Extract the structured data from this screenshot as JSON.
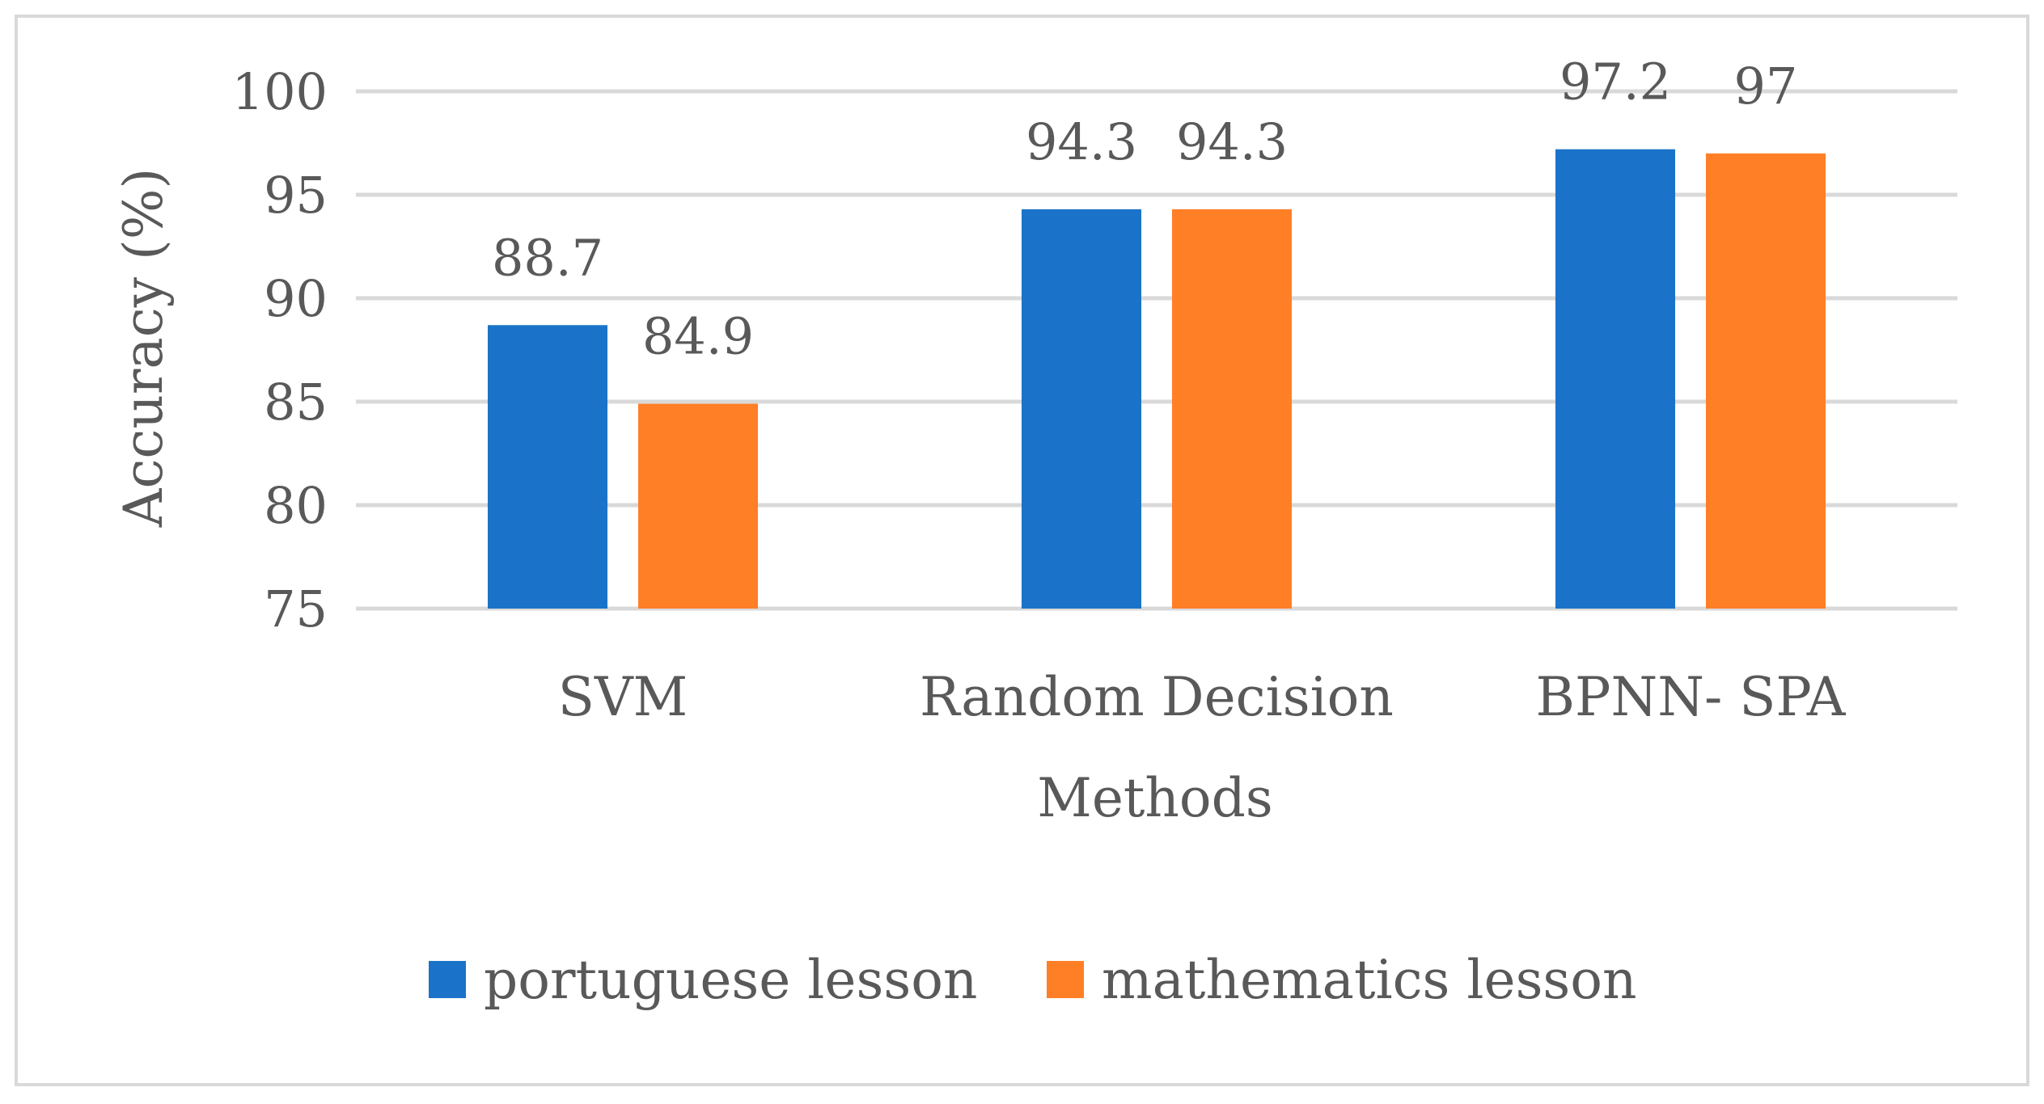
{
  "chart_data": {
    "type": "bar",
    "title": "",
    "xlabel": "Methods",
    "ylabel": "Accuracy (%)",
    "ylim": [
      75,
      100
    ],
    "yticks": [
      75,
      80,
      85,
      90,
      95,
      100
    ],
    "categories": [
      "SVM",
      "Random Decision",
      "BPNN- SPA"
    ],
    "series": [
      {
        "name": "portuguese lesson",
        "values": [
          88.7,
          94.3,
          97.2
        ],
        "labels": [
          "88.7",
          "94.3",
          "97.2"
        ],
        "color": "#1a73c8"
      },
      {
        "name": "mathematics lesson",
        "values": [
          84.9,
          94.3,
          97
        ],
        "labels": [
          "84.9",
          "94.3",
          "97"
        ],
        "color": "#ff7f27"
      }
    ],
    "grid": true,
    "legend_position": "bottom"
  },
  "colors": {
    "gridline": "#d9d9d9",
    "frame": "#d9d9d9",
    "text": "#595959"
  }
}
